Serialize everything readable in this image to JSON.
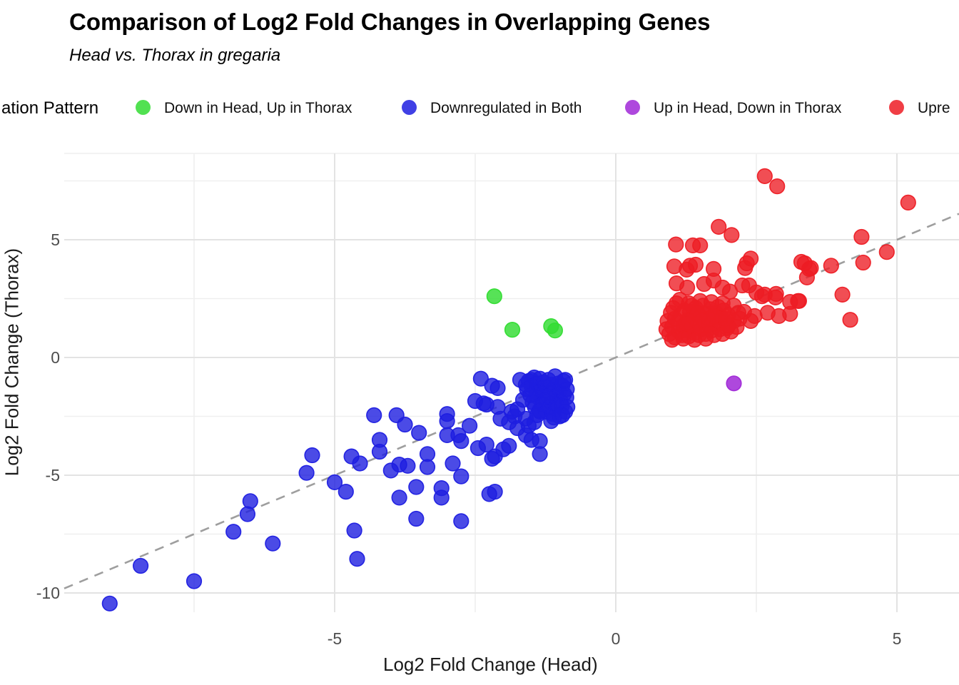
{
  "title": "Comparison of Log2 Fold Changes in Overlapping Genes",
  "subtitle": "Head vs. Thorax in gregaria",
  "legend": {
    "title_visible": "ation Pattern",
    "items": [
      {
        "label": "Down in Head, Up in Thorax",
        "color": "#32DC32"
      },
      {
        "label": "Downregulated in Both",
        "color": "#1E1EE0"
      },
      {
        "label": "Up in Head, Down in Thorax",
        "color": "#A028D7"
      },
      {
        "label": "Upre",
        "color": "#ED1C24"
      }
    ]
  },
  "chart_data": {
    "type": "scatter",
    "title": "Comparison of Log2 Fold Changes in Overlapping Genes",
    "subtitle": "Head vs. Thorax in gregaria",
    "xlabel": "Log2 Fold Change (Head)",
    "ylabel": "Log2 Fold Change (Thorax)",
    "xlim": [
      -9.8,
      6.1
    ],
    "ylim": [
      -10.8,
      8.7
    ],
    "x_ticks": [
      -5,
      0,
      5
    ],
    "x_minor_ticks": [
      -7.5,
      -2.5,
      2.5
    ],
    "y_ticks": [
      5,
      0,
      -5,
      -10
    ],
    "y_minor_ticks": [
      7.5,
      2.5,
      -2.5,
      -7.5
    ],
    "grid": true,
    "legend_position": "top",
    "reference_line": {
      "type": "identity y=x",
      "style": "dashed",
      "color": "#9E9E9E"
    },
    "series": [
      {
        "name": "Down in Head, Up in Thorax",
        "color": "#32DC32",
        "opacity": 0.82,
        "points": [
          [
            -2.16,
            2.6
          ],
          [
            -1.84,
            1.18
          ],
          [
            -1.15,
            1.33
          ],
          [
            -1.08,
            1.15
          ]
        ]
      },
      {
        "name": "Downregulated in Both",
        "color": "#1E1EE0",
        "opacity": 0.8,
        "points": [
          [
            -9.0,
            -10.45
          ],
          [
            -8.45,
            -8.85
          ],
          [
            -7.5,
            -9.5
          ],
          [
            -6.8,
            -7.4
          ],
          [
            -6.5,
            -6.1
          ],
          [
            -6.55,
            -6.65
          ],
          [
            -6.1,
            -7.9
          ],
          [
            -5.5,
            -4.9
          ],
          [
            -5.4,
            -4.15
          ],
          [
            -5.0,
            -5.3
          ],
          [
            -4.8,
            -5.7
          ],
          [
            -4.65,
            -7.35
          ],
          [
            -4.6,
            -8.55
          ],
          [
            -4.7,
            -4.2
          ],
          [
            -4.55,
            -4.5
          ],
          [
            -4.3,
            -2.45
          ],
          [
            -4.2,
            -3.5
          ],
          [
            -4.2,
            -4.0
          ],
          [
            -3.9,
            -2.45
          ],
          [
            -3.75,
            -2.85
          ],
          [
            -3.5,
            -3.2
          ],
          [
            -3.35,
            -4.1
          ],
          [
            -3.85,
            -4.55
          ],
          [
            -3.7,
            -4.6
          ],
          [
            -4.0,
            -4.8
          ],
          [
            -3.55,
            -5.5
          ],
          [
            -3.85,
            -5.95
          ],
          [
            -3.55,
            -6.85
          ],
          [
            -3.35,
            -4.65
          ],
          [
            -3.1,
            -5.55
          ],
          [
            -3.1,
            -5.95
          ],
          [
            -2.9,
            -4.5
          ],
          [
            -2.75,
            -5.05
          ],
          [
            -2.75,
            -6.95
          ],
          [
            -3.0,
            -2.4
          ],
          [
            -3.0,
            -2.7
          ],
          [
            -3.0,
            -3.3
          ],
          [
            -2.8,
            -3.3
          ],
          [
            -2.75,
            -3.55
          ],
          [
            -2.6,
            -2.9
          ],
          [
            -2.5,
            -1.85
          ],
          [
            -2.4,
            -0.9
          ],
          [
            -2.2,
            -1.2
          ],
          [
            -2.1,
            -1.3
          ],
          [
            -2.35,
            -1.95
          ],
          [
            -2.3,
            -2.0
          ],
          [
            -2.1,
            -2.1
          ],
          [
            -2.45,
            -3.85
          ],
          [
            -2.3,
            -3.7
          ],
          [
            -2.2,
            -4.3
          ],
          [
            -2.15,
            -4.2
          ],
          [
            -2.0,
            -3.9
          ],
          [
            -1.9,
            -3.75
          ],
          [
            -1.75,
            -3.0
          ],
          [
            -1.8,
            -2.5
          ],
          [
            -1.85,
            -2.3
          ],
          [
            -1.7,
            -0.95
          ],
          [
            -1.5,
            -0.95
          ],
          [
            -1.6,
            -3.3
          ],
          [
            -1.5,
            -3.5
          ],
          [
            -1.35,
            -3.55
          ],
          [
            -1.35,
            -4.1
          ],
          [
            -1.15,
            -2.7
          ],
          [
            -1.35,
            -2.3
          ],
          [
            -2.15,
            -5.7
          ],
          [
            -2.25,
            -5.8
          ],
          [
            -2.05,
            -2.6
          ],
          [
            -1.9,
            -2.75
          ],
          [
            -1.75,
            -2.2
          ],
          [
            -1.65,
            -1.8
          ],
          [
            -1.6,
            -2.6
          ],
          [
            -1.55,
            -2.9
          ],
          [
            -1.45,
            -2.75
          ],
          [
            -1.55,
            -1.0
          ],
          [
            -1.5,
            -1.2
          ],
          [
            -1.45,
            -0.85
          ],
          [
            -1.42,
            -1.45
          ],
          [
            -1.4,
            -1.1
          ],
          [
            -1.38,
            -1.7
          ],
          [
            -1.35,
            -0.9
          ],
          [
            -1.32,
            -1.3
          ],
          [
            -1.3,
            -1.55
          ],
          [
            -1.28,
            -1.05
          ],
          [
            -1.25,
            -1.8
          ],
          [
            -1.22,
            -1.25
          ],
          [
            -1.2,
            -0.95
          ],
          [
            -1.18,
            -1.5
          ],
          [
            -1.15,
            -1.15
          ],
          [
            -1.12,
            -1.9
          ],
          [
            -1.1,
            -1.35
          ],
          [
            -1.08,
            -0.8
          ],
          [
            -1.05,
            -1.6
          ],
          [
            -1.02,
            -1.1
          ],
          [
            -1.0,
            -1.4
          ],
          [
            -0.98,
            -1.85
          ],
          [
            -0.95,
            -1.2
          ],
          [
            -0.92,
            -1.55
          ],
          [
            -0.9,
            -0.95
          ],
          [
            -0.88,
            -1.7
          ],
          [
            -1.48,
            -1.9
          ],
          [
            -1.44,
            -2.1
          ],
          [
            -1.36,
            -2.25
          ],
          [
            -1.3,
            -2.0
          ],
          [
            -1.24,
            -2.3
          ],
          [
            -1.18,
            -2.1
          ],
          [
            -1.12,
            -2.4
          ],
          [
            -1.06,
            -2.2
          ],
          [
            -1.0,
            -2.5
          ],
          [
            -0.96,
            -2.05
          ],
          [
            -0.9,
            -2.3
          ],
          [
            -1.52,
            -1.6
          ],
          [
            -1.58,
            -1.35
          ],
          [
            -1.05,
            -2.0
          ],
          [
            -0.93,
            -1.0
          ],
          [
            -1.6,
            -1.15
          ],
          [
            -0.87,
            -1.35
          ],
          [
            -0.86,
            -2.1
          ],
          [
            -1.2,
            -1.65
          ],
          [
            -1.4,
            -2.45
          ],
          [
            -1.1,
            -2.55
          ],
          [
            -0.95,
            -2.45
          ]
        ]
      },
      {
        "name": "Up in Head, Down in Thorax",
        "color": "#A028D7",
        "opacity": 0.85,
        "points": [
          [
            2.1,
            -1.1
          ]
        ]
      },
      {
        "name": "Upregulated in Both",
        "color": "#ED1C24",
        "opacity": 0.78,
        "points": [
          [
            2.65,
            7.7
          ],
          [
            2.87,
            7.27
          ],
          [
            5.2,
            6.58
          ],
          [
            4.37,
            5.12
          ],
          [
            1.83,
            5.55
          ],
          [
            2.06,
            5.2
          ],
          [
            1.07,
            4.8
          ],
          [
            1.37,
            4.76
          ],
          [
            1.5,
            4.76
          ],
          [
            4.82,
            4.48
          ],
          [
            2.4,
            4.2
          ],
          [
            2.33,
            4.0
          ],
          [
            1.04,
            3.87
          ],
          [
            1.32,
            3.9
          ],
          [
            1.42,
            3.94
          ],
          [
            1.26,
            3.73
          ],
          [
            1.74,
            3.76
          ],
          [
            2.3,
            3.8
          ],
          [
            3.3,
            4.06
          ],
          [
            3.36,
            4.0
          ],
          [
            3.47,
            3.8
          ],
          [
            3.44,
            3.76
          ],
          [
            3.83,
            3.9
          ],
          [
            4.4,
            4.03
          ],
          [
            3.4,
            3.4
          ],
          [
            1.08,
            3.15
          ],
          [
            1.27,
            2.97
          ],
          [
            1.57,
            3.12
          ],
          [
            1.74,
            3.27
          ],
          [
            1.9,
            2.97
          ],
          [
            2.03,
            2.8
          ],
          [
            2.25,
            3.06
          ],
          [
            2.37,
            3.06
          ],
          [
            2.5,
            2.76
          ],
          [
            2.85,
            2.7
          ],
          [
            2.6,
            2.6
          ],
          [
            2.84,
            2.55
          ],
          [
            3.1,
            2.36
          ],
          [
            3.24,
            2.4
          ],
          [
            2.65,
            2.67
          ],
          [
            4.03,
            2.67
          ],
          [
            4.17,
            1.6
          ],
          [
            2.4,
            1.55
          ],
          [
            2.47,
            1.76
          ],
          [
            2.7,
            1.9
          ],
          [
            2.9,
            1.76
          ],
          [
            3.1,
            1.85
          ],
          [
            2.28,
            1.94
          ],
          [
            3.26,
            2.4
          ],
          [
            0.95,
            1.0
          ],
          [
            1.0,
            1.3
          ],
          [
            1.05,
            0.85
          ],
          [
            1.1,
            1.5
          ],
          [
            1.12,
            1.1
          ],
          [
            1.15,
            1.8
          ],
          [
            1.18,
            0.95
          ],
          [
            1.2,
            1.35
          ],
          [
            1.22,
            2.0
          ],
          [
            1.25,
            1.15
          ],
          [
            1.28,
            1.6
          ],
          [
            1.3,
            0.9
          ],
          [
            1.32,
            1.95
          ],
          [
            1.35,
            1.3
          ],
          [
            1.38,
            1.7
          ],
          [
            1.4,
            1.05
          ],
          [
            1.42,
            2.1
          ],
          [
            1.45,
            1.45
          ],
          [
            1.48,
            0.95
          ],
          [
            1.5,
            1.75
          ],
          [
            1.52,
            1.2
          ],
          [
            1.55,
            2.2
          ],
          [
            1.58,
            1.5
          ],
          [
            1.6,
            1.0
          ],
          [
            1.62,
            1.85
          ],
          [
            1.65,
            1.35
          ],
          [
            1.68,
            2.05
          ],
          [
            1.7,
            1.15
          ],
          [
            1.72,
            1.6
          ],
          [
            1.75,
            0.95
          ],
          [
            1.78,
            1.9
          ],
          [
            1.8,
            1.4
          ],
          [
            1.82,
            2.15
          ],
          [
            1.85,
            1.2
          ],
          [
            1.88,
            1.7
          ],
          [
            1.9,
            1.0
          ],
          [
            1.92,
            2.0
          ],
          [
            1.95,
            1.5
          ],
          [
            1.98,
            1.25
          ],
          [
            2.0,
            1.8
          ],
          [
            2.05,
            1.1
          ],
          [
            2.1,
            1.55
          ],
          [
            2.15,
            1.3
          ],
          [
            0.92,
            1.55
          ],
          [
            0.98,
            1.9
          ],
          [
            1.02,
            2.1
          ],
          [
            1.08,
            2.3
          ],
          [
            1.14,
            2.45
          ],
          [
            1.3,
            2.3
          ],
          [
            1.5,
            2.4
          ],
          [
            1.7,
            2.35
          ],
          [
            1.9,
            2.3
          ],
          [
            2.1,
            2.2
          ],
          [
            1.0,
            0.75
          ],
          [
            1.2,
            0.8
          ],
          [
            1.4,
            0.75
          ],
          [
            1.6,
            0.8
          ],
          [
            1.05,
            1.65
          ],
          [
            1.25,
            1.45
          ],
          [
            1.45,
            1.9
          ],
          [
            1.65,
            1.65
          ],
          [
            1.85,
            1.55
          ],
          [
            2.0,
            1.35
          ],
          [
            0.9,
            1.2
          ],
          [
            2.2,
            1.65
          ],
          [
            2.18,
            1.9
          ],
          [
            1.35,
            2.2
          ],
          [
            1.55,
            1.6
          ],
          [
            1.75,
            1.75
          ],
          [
            1.95,
            1.65
          ]
        ]
      }
    ]
  },
  "x_tick_labels": [
    "-5",
    "0",
    "5"
  ],
  "y_tick_labels": [
    "5",
    "0",
    "-5",
    "-10"
  ]
}
